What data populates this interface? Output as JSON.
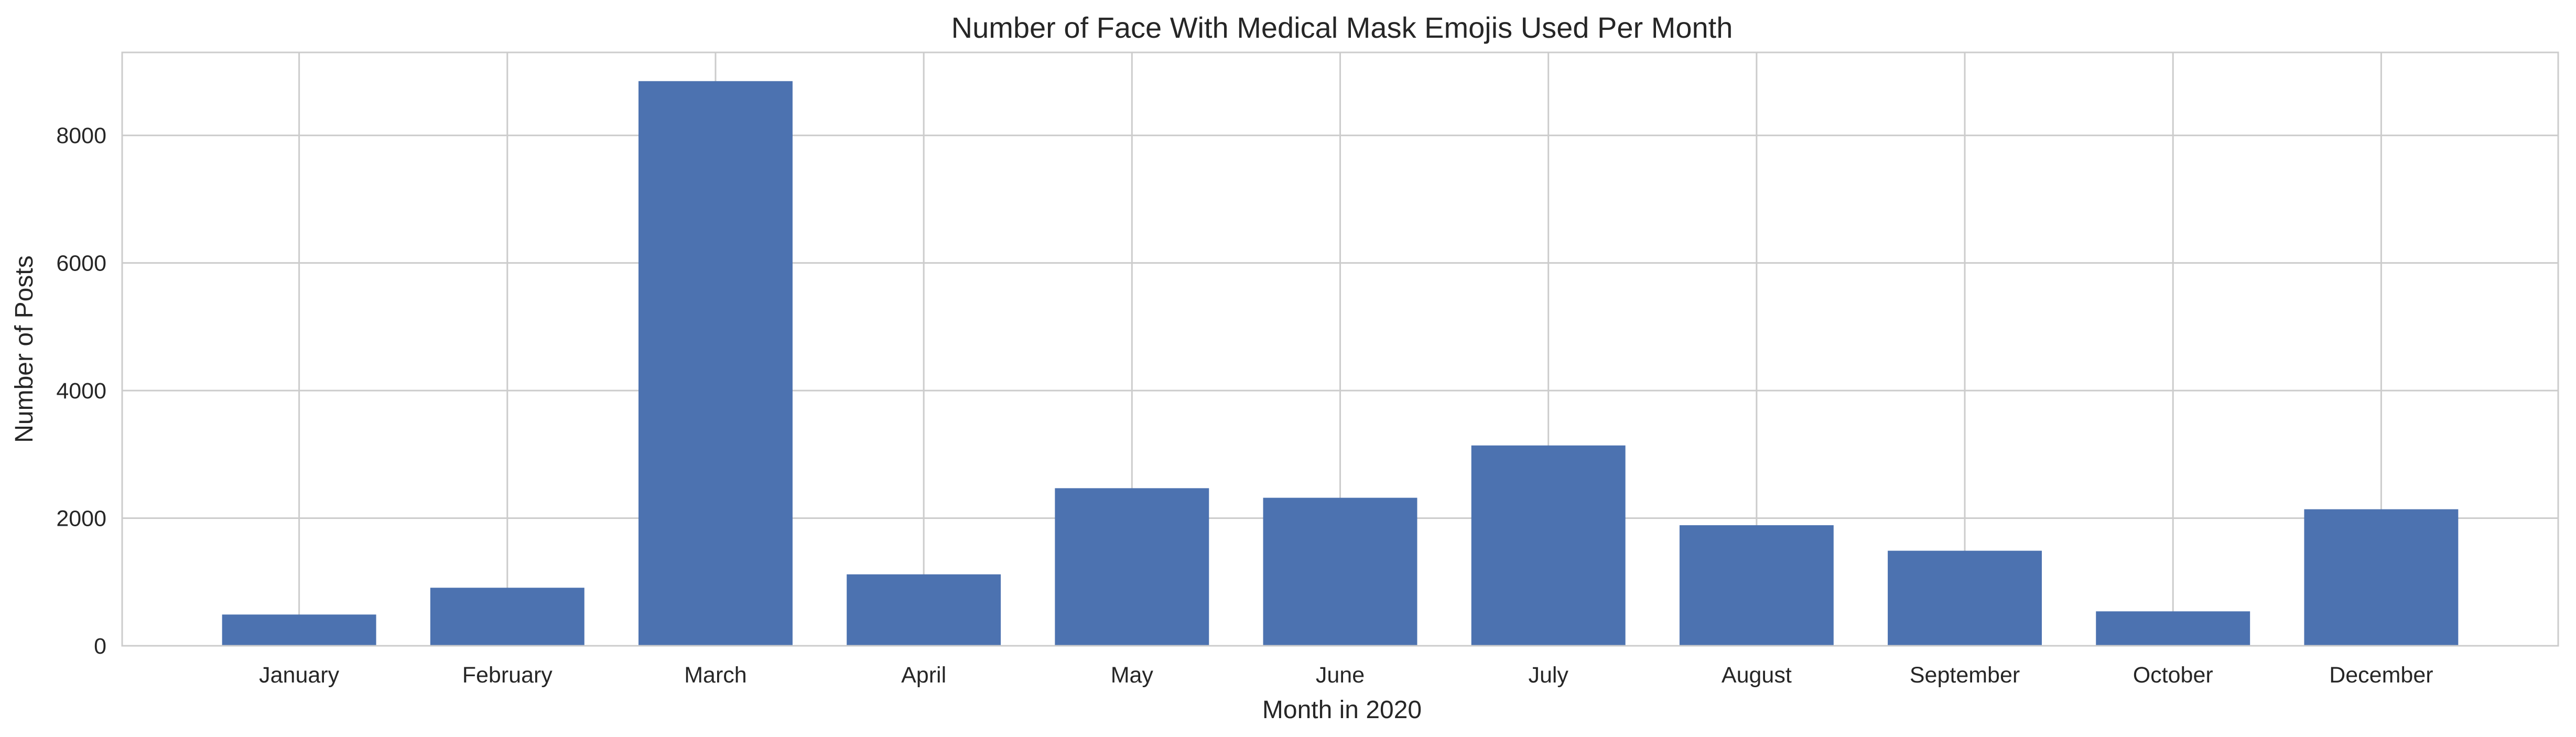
{
  "chart_data": {
    "type": "bar",
    "title": "Number of Face With Medical Mask Emojis Used Per Month",
    "xlabel": "Month in 2020",
    "ylabel": "Number of Posts",
    "categories": [
      "January",
      "February",
      "March",
      "April",
      "May",
      "June",
      "July",
      "August",
      "September",
      "October",
      "December"
    ],
    "values": [
      490,
      910,
      8850,
      1120,
      2470,
      2320,
      3140,
      1890,
      1490,
      540,
      2140
    ],
    "ylim": [
      0,
      9300
    ],
    "yticks": [
      0,
      2000,
      4000,
      6000,
      8000
    ],
    "grid": true,
    "legend": "none",
    "bar_color": "#4c72b0",
    "grid_color": "#cccccc",
    "axes_edge_color": "#cccccc",
    "text_color": "#262626"
  }
}
